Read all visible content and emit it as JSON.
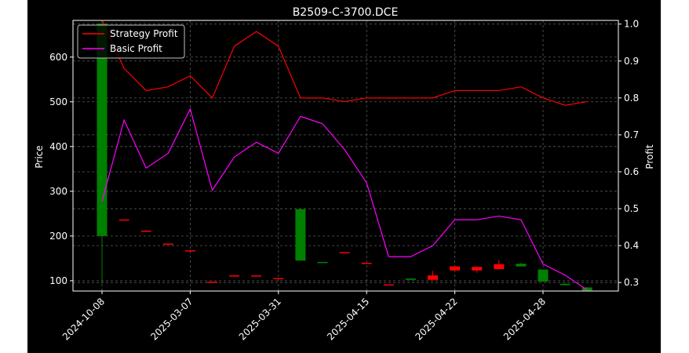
{
  "chart_data": {
    "type": "candlestick+line",
    "title": "B2509-C-3700.DCE",
    "ylabel_left": "Price",
    "ylabel_right": "Profit",
    "grid": true,
    "legend_position": "upper-left",
    "x_tick_labels": [
      "2024-10-08",
      "2025-03-07",
      "2025-03-31",
      "2025-04-15",
      "2025-04-22",
      "2025-04-28"
    ],
    "x_tick_indices": [
      0,
      4,
      8,
      12,
      16,
      20
    ],
    "ylim_left": [
      77,
      682
    ],
    "yticks_left": [
      100,
      200,
      300,
      400,
      500,
      600
    ],
    "ylim_right": [
      0.277,
      1.01
    ],
    "yticks_right": [
      "0.3",
      "0.4",
      "0.5",
      "0.6",
      "0.7",
      "0.8",
      "0.9",
      "1.0"
    ],
    "colors": {
      "up": "#008000",
      "down": "#ff0000",
      "strategy": "#ff0000",
      "basic": "#ff00ff"
    },
    "candles": [
      {
        "open": 200,
        "close": 675,
        "high": 675,
        "low": 94
      },
      {
        "open": 237,
        "close": 235,
        "high": 237,
        "low": 235
      },
      {
        "open": 212,
        "close": 210,
        "high": 212,
        "low": 210
      },
      {
        "open": 183,
        "close": 181,
        "high": 183,
        "low": 181
      },
      {
        "open": 168,
        "close": 166,
        "high": 168,
        "low": 166
      },
      {
        "open": 98,
        "close": 96,
        "high": 98,
        "low": 96
      },
      {
        "open": 112,
        "close": 110,
        "high": 112,
        "low": 110
      },
      {
        "open": 112,
        "close": 110,
        "high": 112,
        "low": 110
      },
      {
        "open": 106,
        "close": 104,
        "high": 106,
        "low": 104
      },
      {
        "open": 145,
        "close": 260,
        "high": 260,
        "low": 145
      },
      {
        "open": 140,
        "close": 142,
        "high": 142,
        "low": 140
      },
      {
        "open": 164,
        "close": 162,
        "high": 164,
        "low": 162
      },
      {
        "open": 140,
        "close": 138,
        "high": 140,
        "low": 138
      },
      {
        "open": 92,
        "close": 90,
        "high": 92,
        "low": 90
      },
      {
        "open": 102,
        "close": 105,
        "high": 105,
        "low": 102
      },
      {
        "open": 112,
        "close": 102,
        "high": 122,
        "low": 102
      },
      {
        "open": 132,
        "close": 123,
        "high": 132,
        "low": 121
      },
      {
        "open": 131,
        "close": 123,
        "high": 131,
        "low": 118
      },
      {
        "open": 137,
        "close": 126,
        "high": 146,
        "low": 126
      },
      {
        "open": 132,
        "close": 138,
        "high": 140,
        "low": 132
      },
      {
        "open": 98,
        "close": 125,
        "high": 125,
        "low": 98
      },
      {
        "open": 90,
        "close": 93,
        "high": 95,
        "low": 90
      },
      {
        "open": 78,
        "close": 85,
        "high": 86,
        "low": 78
      }
    ],
    "series": [
      {
        "name": "Strategy Profit",
        "values": [
          1.01,
          0.88,
          0.82,
          0.83,
          0.86,
          0.8,
          0.94,
          0.98,
          0.94,
          0.8,
          0.8,
          0.79,
          0.8,
          0.8,
          0.8,
          0.8,
          0.82,
          0.82,
          0.82,
          0.83,
          0.8,
          0.78,
          0.79
        ]
      },
      {
        "name": "Basic Profit",
        "values": [
          0.52,
          0.74,
          0.61,
          0.65,
          0.77,
          0.55,
          0.64,
          0.68,
          0.65,
          0.75,
          0.73,
          0.66,
          0.57,
          0.37,
          0.37,
          0.4,
          0.47,
          0.47,
          0.48,
          0.47,
          0.35,
          0.32,
          0.28
        ]
      }
    ]
  }
}
